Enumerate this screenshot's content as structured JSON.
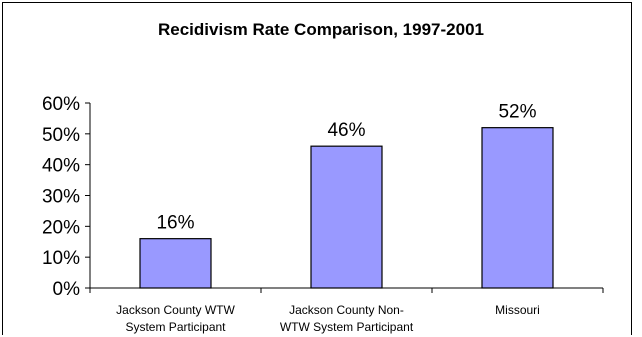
{
  "chart_data": {
    "type": "bar",
    "title": "Recidivism Rate Comparison, 1997-2001",
    "categories": [
      [
        "Jackson County WTW",
        "System Participant"
      ],
      [
        "Jackson County Non-",
        "WTW System Participant"
      ],
      [
        "Missouri"
      ]
    ],
    "values": [
      16,
      46,
      52
    ],
    "value_labels": [
      "16%",
      "46%",
      "52%"
    ],
    "y_ticks": [
      "0%",
      "10%",
      "20%",
      "30%",
      "40%",
      "50%",
      "60%"
    ],
    "ylim": [
      0,
      60
    ],
    "grid": false,
    "bar_color": "#9999ff",
    "xlabel": "",
    "ylabel": ""
  }
}
